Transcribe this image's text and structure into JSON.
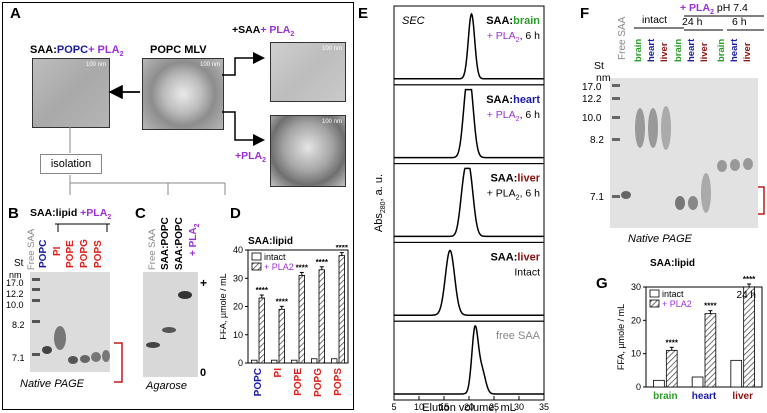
{
  "panels": {
    "A": {
      "label": "A",
      "mlv_title": "POPC MLV",
      "saa_plus": "+SAA",
      "pla2_top": "+ PLA",
      "pla2_sub": "2",
      "left_title_saa": "SAA:",
      "left_title_popc": "POPC",
      "left_title_pla": "+ PLA",
      "left_title_sub": "2",
      "pla2_bottom": "+PLA",
      "isolation": "isolation",
      "scalebar": "100 nm"
    },
    "B": {
      "label": "B",
      "title_saa": "SAA:lipid",
      "title_pla": " +PLA",
      "title_sub": "2",
      "lanes": [
        "St",
        "Free SAA",
        "POPC",
        "PI",
        "POPE",
        "POPG",
        "POPS"
      ],
      "nm": "nm",
      "markers": [
        "17.0",
        "12.2",
        "10.0",
        "8.2",
        "7.1"
      ],
      "caption": "Native PAGE"
    },
    "C": {
      "label": "C",
      "lanes": [
        "Free SAA",
        "SAA:POPC",
        "SAA:POPC"
      ],
      "plus_lane": "+ PLA",
      "plus_sub": "2",
      "plus_sign": "+",
      "zero_sign": "0",
      "caption": "Agarose"
    },
    "D": {
      "label": "D",
      "title": "SAA:lipid"
    },
    "E": {
      "label": "E",
      "sec": "SEC",
      "traces": [
        {
          "title_a": "SAA:",
          "title_b": "brain",
          "line2": "+ PLA",
          "sub": "2",
          "time": ", 6 h"
        },
        {
          "title_a": "SAA:",
          "title_b": "heart",
          "line2": "+ PLA",
          "sub": "2",
          "time": ", 6 h"
        },
        {
          "title_a": "SAA:",
          "title_b": "liver",
          "line2": "+ PLA",
          "sub": "2",
          "time": ", 6 h"
        },
        {
          "title_a": "SAA:",
          "title_b": "liver",
          "line2": "Intact",
          "sub": "",
          "time": ""
        },
        {
          "title_a": "",
          "title_b": "free SAA",
          "line2": "",
          "sub": "",
          "time": ""
        }
      ],
      "ylabel": "Abs",
      "ylabel_sub": "280",
      "ylabel_unit": ", a. u.",
      "xlabel": "Elution volume, mL",
      "xticks": [
        "5",
        "10",
        "15",
        "20",
        "25",
        "30",
        "35"
      ]
    },
    "F": {
      "label": "F",
      "free_saa": "Free SAA",
      "intact": "intact",
      "pla_head": "+ PLA",
      "pla_sub": "2",
      "ph": " pH 7.4",
      "t24": "24 h",
      "t6": "6 h",
      "lanes": [
        "brain",
        "heart",
        "liver",
        "brain",
        "heart",
        "liver",
        "brain",
        "heart",
        "liver"
      ],
      "st": "St",
      "nm": "nm",
      "markers": [
        "17.0",
        "12.2",
        "10.0",
        "8.2",
        "7.1"
      ],
      "caption": "Native PAGE"
    },
    "G": {
      "label": "G",
      "title": "SAA:lipid",
      "time": "24 h"
    }
  },
  "chart_data": [
    {
      "type": "bar",
      "panel": "D",
      "title": "SAA:lipid",
      "ylabel": "FFA, µmole / mL",
      "categories": [
        "POPC",
        "PI",
        "POPE",
        "POPG",
        "POPS"
      ],
      "category_colors": [
        "#1a1aa8",
        "#e0201c",
        "#e0201c",
        "#e0201c",
        "#e0201c"
      ],
      "ylim": [
        0,
        40
      ],
      "yticks": [
        "0",
        "10",
        "20",
        "30",
        "40"
      ],
      "series": [
        {
          "name": "intact",
          "values": [
            1,
            1,
            1,
            1.5,
            1.5
          ],
          "fill": "#ffffff"
        },
        {
          "name": "+ PLA2",
          "values": [
            23,
            19,
            31,
            33,
            38
          ],
          "fill": "hatch"
        }
      ],
      "annotations": [
        "****",
        "****",
        "****",
        "****",
        "****"
      ],
      "legend": "top-left"
    },
    {
      "type": "bar",
      "panel": "G",
      "title": "SAA:lipid",
      "ylabel": "FFA, µmole / mL",
      "categories": [
        "brain",
        "heart",
        "liver"
      ],
      "category_colors": [
        "#2a9d2a",
        "#1a1aa8",
        "#8b1010"
      ],
      "ylim": [
        0,
        30
      ],
      "yticks": [
        "0",
        "10",
        "20",
        "30"
      ],
      "series": [
        {
          "name": "intact",
          "values": [
            2,
            3,
            8
          ],
          "fill": "#ffffff"
        },
        {
          "name": "+ PLA2",
          "values": [
            11,
            22,
            30
          ],
          "fill": "hatch"
        }
      ],
      "annotations": [
        "****",
        "****",
        "****"
      ],
      "legend": "top-left"
    },
    {
      "type": "line",
      "panel": "E",
      "title": "SEC",
      "xlabel": "Elution volume, mL",
      "ylabel": "Abs280, a. u.",
      "xlim": [
        5,
        35
      ],
      "series": [
        {
          "name": "SAA:brain + PLA2, 6 h",
          "peak_x": 20.5,
          "peak_width": 0.9,
          "shoulder_x": 0,
          "shoulder_h": 0
        },
        {
          "name": "SAA:heart + PLA2, 6 h",
          "peak_x": 20.2,
          "peak_width": 1.1,
          "shoulder_x": 19.3,
          "shoulder_h": 0.55
        },
        {
          "name": "SAA:liver + PLA2, 6 h",
          "peak_x": 20.0,
          "peak_width": 1.2,
          "shoulder_x": 18.8,
          "shoulder_h": 0.5
        },
        {
          "name": "SAA:liver Intact",
          "peak_x": 16.2,
          "peak_width": 1.3,
          "shoulder_x": 0,
          "shoulder_h": 0
        },
        {
          "name": "free SAA",
          "peak_x": 21.2,
          "peak_width": 0.9,
          "shoulder_x": 22.6,
          "shoulder_h": 0.35
        }
      ]
    }
  ]
}
